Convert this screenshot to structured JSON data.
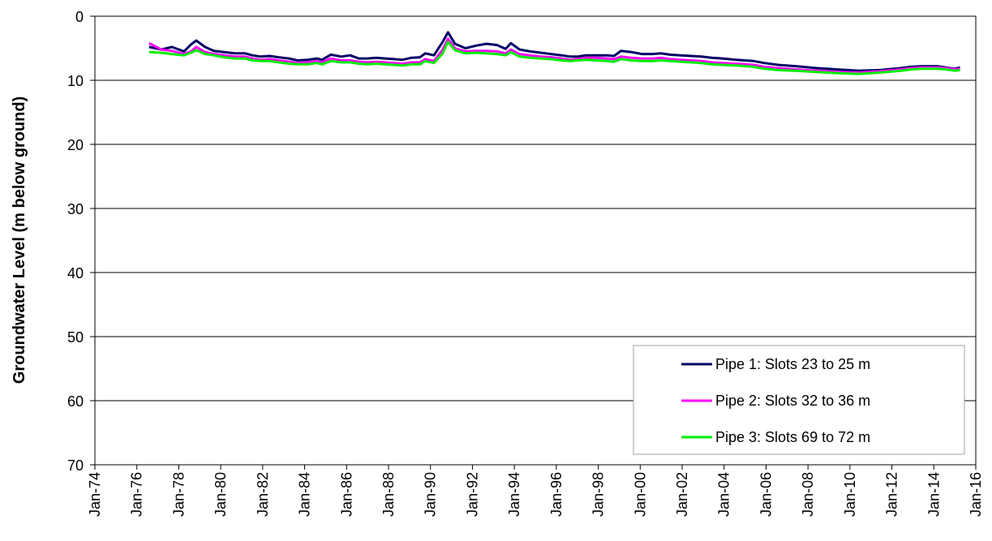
{
  "chart_data": {
    "type": "line",
    "title": "",
    "xlabel": "",
    "ylabel": "Groundwater Level (m below ground)",
    "y_inverted": true,
    "ylim": [
      0,
      70
    ],
    "yticks": [
      0,
      10,
      20,
      30,
      40,
      50,
      60,
      70
    ],
    "xlim": [
      "1974-01",
      "2016-01"
    ],
    "xtick_labels": [
      "Jan-74",
      "Jan-76",
      "Jan-78",
      "Jan-80",
      "Jan-82",
      "Jan-84",
      "Jan-86",
      "Jan-88",
      "Jan-90",
      "Jan-92",
      "Jan-94",
      "Jan-96",
      "Jan-98",
      "Jan-00",
      "Jan-02",
      "Jan-04",
      "Jan-06",
      "Jan-08",
      "Jan-10",
      "Jan-12",
      "Jan-14",
      "Jan-16"
    ],
    "xtick_dates": [
      "1974-01",
      "1976-01",
      "1978-01",
      "1980-01",
      "1982-01",
      "1984-01",
      "1986-01",
      "1988-01",
      "1990-01",
      "1992-01",
      "1994-01",
      "1996-01",
      "1998-01",
      "2000-01",
      "2002-01",
      "2004-01",
      "2006-01",
      "2008-01",
      "2010-01",
      "2012-01",
      "2014-01",
      "2016-01"
    ],
    "grid": "horizontal",
    "legend_position": "bottom-right",
    "series": [
      {
        "name": "Pipe 1: Slots 23 to 25 m",
        "color": "#000066",
        "x": [
          "1976-08",
          "1977-03",
          "1977-09",
          "1978-04",
          "1978-08",
          "1978-11",
          "1979-04",
          "1979-09",
          "1980-03",
          "1980-09",
          "1981-03",
          "1981-07",
          "1981-12",
          "1982-05",
          "1982-10",
          "1983-04",
          "1983-09",
          "1984-03",
          "1984-08",
          "1984-11",
          "1985-04",
          "1985-10",
          "1986-03",
          "1986-08",
          "1987-01",
          "1987-06",
          "1987-11",
          "1988-04",
          "1988-09",
          "1989-02",
          "1989-07",
          "1989-10",
          "1990-03",
          "1990-08",
          "1990-11",
          "1991-03",
          "1991-09",
          "1992-03",
          "1992-09",
          "1993-03",
          "1993-08",
          "1993-11",
          "1994-04",
          "1994-10",
          "1995-04",
          "1995-10",
          "1996-04",
          "1996-09",
          "1997-01",
          "1997-06",
          "1997-12",
          "1998-06",
          "1998-10",
          "1999-02",
          "1999-08",
          "2000-02",
          "2000-08",
          "2001-01",
          "2001-06",
          "2001-12",
          "2002-06",
          "2002-12",
          "2003-06",
          "2003-12",
          "2004-08",
          "2005-06",
          "2005-12",
          "2006-08",
          "2007-06",
          "2008-06",
          "2009-06",
          "2010-06",
          "2011-06",
          "2012-06",
          "2012-12",
          "2013-06",
          "2014-03",
          "2014-08",
          "2015-01",
          "2015-04"
        ],
        "y": [
          4.8,
          5.2,
          4.8,
          5.5,
          4.4,
          3.8,
          4.8,
          5.4,
          5.6,
          5.8,
          5.8,
          6.1,
          6.3,
          6.2,
          6.4,
          6.6,
          6.9,
          6.8,
          6.6,
          6.8,
          6.0,
          6.3,
          6.1,
          6.6,
          6.6,
          6.5,
          6.6,
          6.7,
          6.8,
          6.5,
          6.4,
          5.8,
          6.1,
          4.0,
          2.5,
          4.3,
          5.0,
          4.6,
          4.3,
          4.5,
          5.1,
          4.2,
          5.2,
          5.5,
          5.7,
          5.9,
          6.1,
          6.3,
          6.3,
          6.1,
          6.1,
          6.1,
          6.2,
          5.4,
          5.6,
          5.9,
          5.9,
          5.8,
          6.0,
          6.1,
          6.2,
          6.3,
          6.5,
          6.6,
          6.8,
          7.0,
          7.3,
          7.6,
          7.8,
          8.1,
          8.3,
          8.5,
          8.4,
          8.1,
          7.9,
          7.8,
          7.8,
          8.0,
          8.2,
          8.0
        ]
      },
      {
        "name": "Pipe 2: Slots 32 to 36 m",
        "color": "#ff00ff",
        "x": [
          "1976-08",
          "1977-03",
          "1977-09",
          "1978-04",
          "1978-08",
          "1978-11",
          "1979-04",
          "1979-09",
          "1980-03",
          "1980-09",
          "1981-03",
          "1981-07",
          "1981-12",
          "1982-05",
          "1982-10",
          "1983-04",
          "1983-09",
          "1984-03",
          "1984-08",
          "1984-11",
          "1985-04",
          "1985-10",
          "1986-03",
          "1986-08",
          "1987-01",
          "1987-06",
          "1987-11",
          "1988-04",
          "1988-09",
          "1989-02",
          "1989-07",
          "1989-10",
          "1990-03",
          "1990-08",
          "1990-11",
          "1991-03",
          "1991-09",
          "1992-03",
          "1992-09",
          "1993-03",
          "1993-08",
          "1993-11",
          "1994-04",
          "1994-10",
          "1995-04",
          "1995-10",
          "1996-04",
          "1996-09",
          "1997-01",
          "1997-06",
          "1997-12",
          "1998-06",
          "1998-10",
          "1999-02",
          "1999-08",
          "2000-02",
          "2000-08",
          "2001-01",
          "2001-06",
          "2001-12",
          "2002-06",
          "2002-12",
          "2003-06",
          "2003-12",
          "2004-08",
          "2005-06",
          "2005-12",
          "2006-08",
          "2007-06",
          "2008-06",
          "2009-06",
          "2010-06",
          "2011-06",
          "2012-06",
          "2012-12",
          "2013-06",
          "2014-03",
          "2014-08",
          "2015-01",
          "2015-04"
        ],
        "y": [
          4.2,
          5.2,
          5.4,
          5.9,
          5.5,
          4.8,
          5.6,
          5.9,
          6.1,
          6.3,
          6.3,
          6.6,
          6.8,
          6.7,
          6.9,
          7.1,
          7.3,
          7.2,
          7.0,
          7.2,
          6.6,
          6.9,
          6.9,
          7.1,
          7.2,
          7.1,
          7.2,
          7.3,
          7.4,
          7.2,
          7.2,
          6.7,
          7.0,
          5.2,
          3.5,
          5.0,
          5.5,
          5.4,
          5.4,
          5.5,
          5.8,
          5.2,
          5.9,
          6.1,
          6.3,
          6.4,
          6.6,
          6.8,
          6.7,
          6.5,
          6.5,
          6.6,
          6.7,
          6.3,
          6.5,
          6.6,
          6.6,
          6.5,
          6.7,
          6.8,
          6.9,
          7.0,
          7.2,
          7.3,
          7.4,
          7.6,
          7.9,
          8.1,
          8.3,
          8.5,
          8.7,
          8.8,
          8.6,
          8.3,
          8.1,
          8.0,
          8.0,
          8.1,
          8.3,
          8.2
        ]
      },
      {
        "name": "Pipe 3: Slots 69 to 72 m",
        "color": "#00ee00",
        "x": [
          "1976-08",
          "1977-03",
          "1977-09",
          "1978-04",
          "1978-08",
          "1978-11",
          "1979-04",
          "1979-09",
          "1980-03",
          "1980-09",
          "1981-03",
          "1981-07",
          "1981-12",
          "1982-05",
          "1982-10",
          "1983-04",
          "1983-09",
          "1984-03",
          "1984-08",
          "1984-11",
          "1985-04",
          "1985-10",
          "1986-03",
          "1986-08",
          "1987-01",
          "1987-06",
          "1987-11",
          "1988-04",
          "1988-09",
          "1989-02",
          "1989-07",
          "1989-10",
          "1990-03",
          "1990-08",
          "1990-11",
          "1991-03",
          "1991-09",
          "1992-03",
          "1992-09",
          "1993-03",
          "1993-08",
          "1993-11",
          "1994-04",
          "1994-10",
          "1995-04",
          "1995-10",
          "1996-04",
          "1996-09",
          "1997-01",
          "1997-06",
          "1997-12",
          "1998-06",
          "1998-10",
          "1999-02",
          "1999-08",
          "2000-02",
          "2000-08",
          "2001-01",
          "2001-06",
          "2001-12",
          "2002-06",
          "2002-12",
          "2003-06",
          "2003-12",
          "2004-08",
          "2005-06",
          "2005-12",
          "2006-08",
          "2007-06",
          "2008-06",
          "2009-06",
          "2010-06",
          "2011-06",
          "2012-06",
          "2012-12",
          "2013-06",
          "2014-03",
          "2014-08",
          "2015-01",
          "2015-04"
        ],
        "y": [
          5.6,
          5.7,
          5.9,
          6.1,
          5.7,
          5.3,
          5.9,
          6.1,
          6.4,
          6.6,
          6.6,
          6.9,
          7.0,
          7.0,
          7.2,
          7.4,
          7.5,
          7.5,
          7.3,
          7.5,
          7.0,
          7.2,
          7.2,
          7.4,
          7.5,
          7.4,
          7.5,
          7.6,
          7.7,
          7.5,
          7.5,
          7.0,
          7.3,
          5.8,
          4.0,
          5.3,
          5.8,
          5.7,
          5.8,
          5.9,
          6.1,
          5.6,
          6.3,
          6.5,
          6.6,
          6.7,
          6.9,
          7.0,
          6.9,
          6.8,
          6.9,
          7.0,
          7.1,
          6.7,
          6.9,
          7.0,
          7.0,
          6.9,
          7.0,
          7.1,
          7.2,
          7.3,
          7.5,
          7.6,
          7.7,
          7.9,
          8.2,
          8.4,
          8.5,
          8.7,
          8.9,
          9.0,
          8.8,
          8.5,
          8.3,
          8.2,
          8.2,
          8.3,
          8.5,
          8.4
        ]
      }
    ]
  }
}
